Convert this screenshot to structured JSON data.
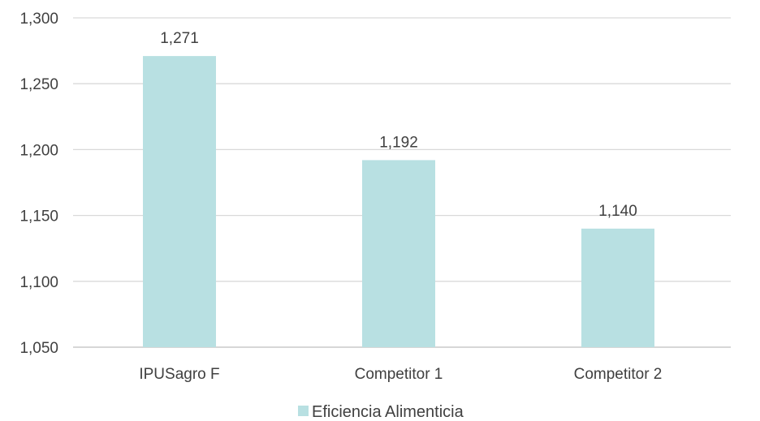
{
  "chart_data": {
    "type": "bar",
    "title": "",
    "xlabel": "",
    "ylabel": "",
    "categories": [
      "IPUSagro F",
      "Competitor 1",
      "Competitor 2"
    ],
    "series": [
      {
        "name": "Eficiencia Alimenticia",
        "values": [
          1.271,
          1.192,
          1.14
        ],
        "labels": [
          "1,271",
          "1,192",
          "1,140"
        ],
        "color": "#b8e0e2"
      }
    ],
    "ylim": [
      1.05,
      1.3
    ],
    "yticks": [
      1.05,
      1.1,
      1.15,
      1.2,
      1.25,
      1.3
    ],
    "ytick_labels": [
      "1,050",
      "1,100",
      "1,150",
      "1,200",
      "1,250",
      "1,300"
    ],
    "grid": true,
    "legend_position": "bottom"
  }
}
